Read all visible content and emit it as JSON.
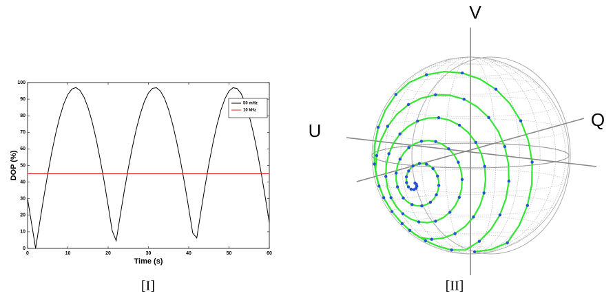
{
  "chart_data": {
    "type": "line",
    "x": [
      0,
      1,
      2,
      3,
      4,
      5,
      6,
      7,
      8,
      9,
      10,
      11,
      12,
      13,
      14,
      15,
      16,
      17,
      18,
      19,
      20,
      21,
      22,
      23,
      24,
      25,
      26,
      27,
      28,
      29,
      30,
      31,
      32,
      33,
      34,
      35,
      36,
      37,
      38,
      39,
      40,
      41,
      42,
      43,
      44,
      45,
      46,
      47,
      48,
      49,
      50,
      51,
      52,
      53,
      54,
      55,
      56,
      57,
      58,
      59,
      60
    ],
    "series": [
      {
        "name": "50 mHz",
        "color": "#000000",
        "values": [
          30,
          15,
          0,
          15.4,
          30.4,
          44.7,
          57.8,
          69.4,
          79.3,
          87.2,
          92.8,
          96.1,
          97,
          95.3,
          91.3,
          85,
          76.6,
          66.2,
          54,
          40.6,
          25.9,
          10.7,
          4.6,
          19.8,
          34.5,
          48.3,
          60.9,
          72,
          81.3,
          88.6,
          93.7,
          96.5,
          96.9,
          94.8,
          90.4,
          83.7,
          75,
          64.4,
          52.2,
          38.8,
          24.2,
          9.2,
          6.3,
          21.8,
          36.8,
          50.8,
          63.4,
          74.4,
          83.5,
          90.3,
          94.9,
          96.9,
          96.4,
          93.4,
          87.9,
          80.1,
          70.2,
          58.5,
          45.3,
          30.8,
          15.6
        ]
      },
      {
        "name": "10 kHz",
        "color": "#e0201b",
        "values": [
          45,
          45,
          45,
          45,
          45,
          45,
          45,
          45,
          45,
          45,
          45,
          45,
          45,
          45,
          45,
          45,
          45,
          45,
          45,
          45,
          45,
          45,
          45,
          45,
          45,
          45,
          45,
          45,
          45,
          45,
          45,
          45,
          45,
          45,
          45,
          45,
          45,
          45,
          45,
          45,
          45,
          45,
          45,
          45,
          45,
          45,
          45,
          45,
          45,
          45,
          45,
          45,
          45,
          45,
          45,
          45,
          45,
          45,
          45,
          45,
          45
        ]
      }
    ],
    "x_label": "Time (s)",
    "y_label": "DOP (%)",
    "xlim": [
      0,
      60
    ],
    "xticks": [
      0,
      10,
      20,
      30,
      40,
      50,
      60
    ],
    "ylim": [
      0,
      100
    ],
    "yticks": [
      0,
      10,
      20,
      30,
      40,
      50,
      60,
      70,
      80,
      90,
      100
    ],
    "legend": "upper right",
    "grid": false
  },
  "figure": {
    "captions": [
      "[I]",
      "[II]"
    ],
    "sphere": {
      "axis_labels": {
        "V": "V",
        "Q": "Q",
        "U": "U"
      }
    }
  }
}
